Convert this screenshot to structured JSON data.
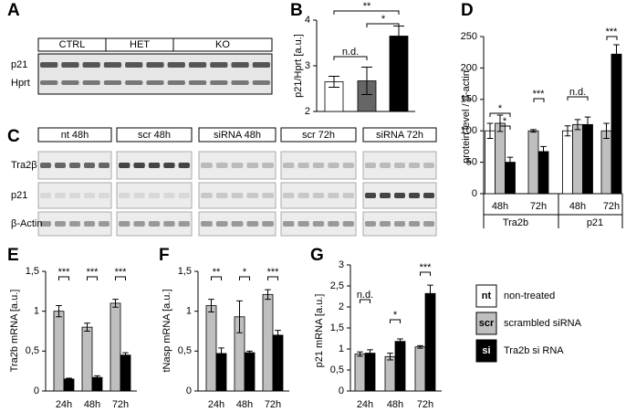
{
  "panels": {
    "labels": [
      "A",
      "B",
      "C",
      "D",
      "E",
      "F",
      "G"
    ]
  },
  "blot_a": {
    "groups": [
      "CTRL",
      "HET",
      "KO"
    ],
    "rows": [
      "p21",
      "Hprt"
    ]
  },
  "blot_c": {
    "groups": [
      "nt 48h",
      "scr 48h",
      "siRNA 48h",
      "scr 72h",
      "siRNA 72h"
    ],
    "rows": [
      "Tra2β",
      "p21",
      "β-Actin"
    ]
  },
  "legend": [
    {
      "key": "nt",
      "label": "non-treated",
      "color": "#ffffff"
    },
    {
      "key": "scr",
      "label": "scrambled siRNA",
      "color": "#bfbfbf"
    },
    {
      "key": "si",
      "label": "Tra2b si RNA",
      "color": "#000000"
    }
  ],
  "chart_data": [
    {
      "type": "bar",
      "y_label": "p21/Hprt [a.u.]",
      "categories": [
        null,
        null,
        null
      ],
      "values": [
        2.65,
        2.67,
        3.65
      ],
      "errors": [
        0.12,
        0.3,
        0.22
      ],
      "colors": [
        "#ffffff",
        "#666666",
        "#000000"
      ],
      "ylim": [
        2,
        4
      ],
      "yticks": [
        2,
        3,
        4
      ],
      "annotations": [
        "n.d.",
        "*",
        "**"
      ]
    },
    {
      "type": "bar",
      "y_label": "protein level / β-actin",
      "categories": [
        "48h",
        "72h",
        "48h",
        "72h"
      ],
      "groups": [
        "Tra2b",
        "p21"
      ],
      "series": [
        {
          "color": "#ffffff",
          "values": [
            100,
            null,
            100,
            null
          ],
          "errors": [
            12,
            null,
            8,
            null
          ]
        },
        {
          "color": "#bfbfbf",
          "values": [
            112,
            100,
            110,
            100
          ],
          "errors": [
            13,
            2,
            8,
            12
          ]
        },
        {
          "color": "#000000",
          "values": [
            50,
            67,
            110,
            222
          ],
          "errors": [
            8,
            8,
            12,
            15
          ]
        }
      ],
      "ylim": [
        0,
        250
      ],
      "yticks": [
        0,
        50,
        100,
        150,
        200,
        250
      ],
      "annotations": [
        "*",
        "*",
        "***",
        "n.d.",
        "***"
      ]
    },
    {
      "type": "bar",
      "y_label": "Tra2b mRNA [a.u.]",
      "categories": [
        "24h",
        "48h",
        "72h"
      ],
      "series": [
        {
          "color": "#bfbfbf",
          "values": [
            1.0,
            0.8,
            1.1
          ],
          "errors": [
            0.07,
            0.05,
            0.05
          ]
        },
        {
          "color": "#000000",
          "values": [
            0.15,
            0.17,
            0.45
          ],
          "errors": [
            0.01,
            0.02,
            0.03
          ]
        }
      ],
      "ylim": [
        0,
        1.5
      ],
      "yticks": [
        0,
        {
          "value": 0.5,
          "label": "0,5"
        },
        1,
        {
          "value": 1.5,
          "label": "1,5"
        }
      ],
      "annotations": [
        "***",
        "***",
        "***"
      ]
    },
    {
      "type": "bar",
      "y_label": "tNasp mRNA [a.u.]",
      "categories": [
        "24h",
        "48h",
        "72h"
      ],
      "series": [
        {
          "color": "#bfbfbf",
          "values": [
            1.07,
            0.93,
            1.21
          ],
          "errors": [
            0.08,
            0.2,
            0.06
          ]
        },
        {
          "color": "#000000",
          "values": [
            0.47,
            0.48,
            0.7
          ],
          "errors": [
            0.07,
            0.02,
            0.06
          ]
        }
      ],
      "ylim": [
        0,
        1.5
      ],
      "yticks": [
        0,
        {
          "value": 0.5,
          "label": "0,5"
        },
        1,
        {
          "value": 1.5,
          "label": "1,5"
        }
      ],
      "annotations": [
        "**",
        "*",
        "***"
      ]
    },
    {
      "type": "bar",
      "y_label": "p21 mRNA [a.u.]",
      "categories": [
        "24h",
        "48h",
        "72h"
      ],
      "series": [
        {
          "color": "#bfbfbf",
          "values": [
            0.88,
            0.82,
            1.05
          ],
          "errors": [
            0.05,
            0.08,
            0.03
          ]
        },
        {
          "color": "#000000",
          "values": [
            0.9,
            1.18,
            2.32
          ],
          "errors": [
            0.08,
            0.06,
            0.2
          ]
        }
      ],
      "ylim": [
        0,
        3
      ],
      "yticks": [
        0,
        {
          "value": 0.5,
          "label": "0,5"
        },
        1,
        {
          "value": 1.5,
          "label": "1,5"
        },
        2,
        {
          "value": 2.5,
          "label": "2,5"
        },
        3
      ],
      "annotations": [
        "n.d.",
        "*",
        "***"
      ]
    }
  ]
}
